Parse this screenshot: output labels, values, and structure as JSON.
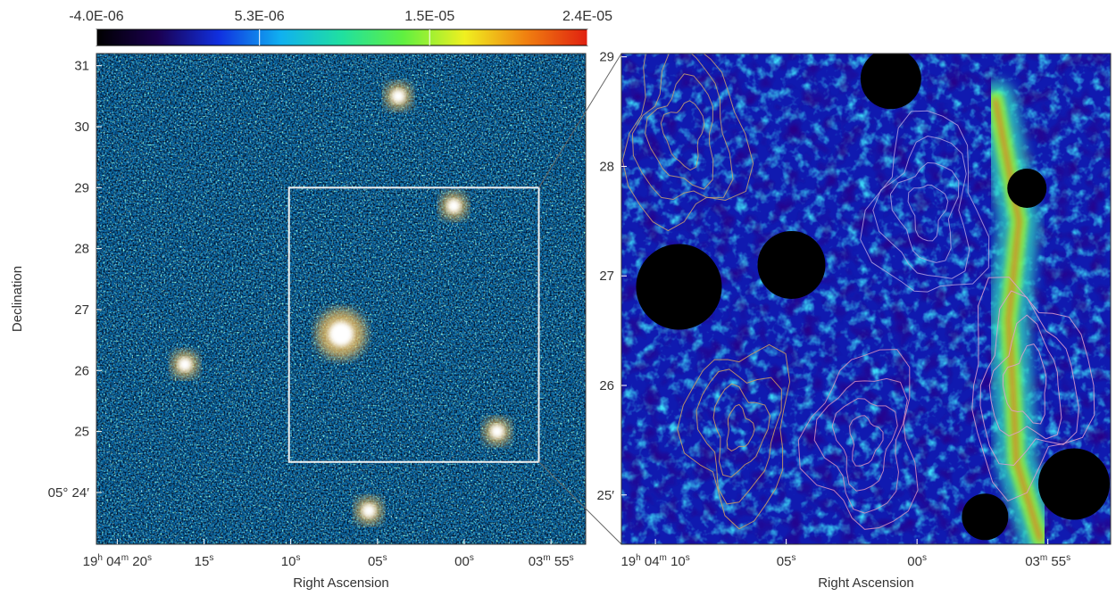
{
  "colorbar": {
    "tick_labels": [
      "-4.0E-06",
      "5.3E-06",
      "1.5E-05",
      "2.4E-05"
    ],
    "min": -4e-06,
    "max": 2.4e-05,
    "colormap": [
      "#000000",
      "#1a0050",
      "#1030e0",
      "#10b0f0",
      "#20e0a0",
      "#60f040",
      "#f0f020",
      "#f08010",
      "#e02010"
    ]
  },
  "chart_data": [
    {
      "type": "heatmap",
      "panel": "left",
      "xlabel": "Right Ascension",
      "ylabel": "Declination",
      "x_ticks": [
        {
          "label": "19h 04m 20s",
          "ra_s": 20
        },
        {
          "label": "15s",
          "ra_s": 15
        },
        {
          "label": "10s",
          "ra_s": 10
        },
        {
          "label": "05s",
          "ra_s": 5
        },
        {
          "label": "00s",
          "ra_s": 0
        },
        {
          "label": "03m 55s",
          "ra_s": -5
        }
      ],
      "y_ticks": [
        {
          "label": "31",
          "dec_arcmin": 31
        },
        {
          "label": "30",
          "dec_arcmin": 30
        },
        {
          "label": "29",
          "dec_arcmin": 29
        },
        {
          "label": "28",
          "dec_arcmin": 28
        },
        {
          "label": "27",
          "dec_arcmin": 27
        },
        {
          "label": "26",
          "dec_arcmin": 26
        },
        {
          "label": "25",
          "dec_arcmin": 25
        },
        {
          "label": "05° 24′",
          "dec_arcmin": 24
        }
      ],
      "zoom_box": {
        "ra_s": [
          10.1,
          -4.3
        ],
        "dec_arcmin": [
          24.5,
          29.0
        ]
      },
      "bright_sources": [
        {
          "ra_s": 7.1,
          "dec_arcmin": 26.6
        },
        {
          "ra_s": 16.1,
          "dec_arcmin": 26.1
        },
        {
          "ra_s": -1.9,
          "dec_arcmin": 25.0
        },
        {
          "ra_s": 5.5,
          "dec_arcmin": 23.7
        },
        {
          "ra_s": 3.8,
          "dec_arcmin": 30.5
        },
        {
          "ra_s": 0.6,
          "dec_arcmin": 28.7
        }
      ],
      "colormap_range": [
        -4e-06,
        2.4e-05
      ]
    },
    {
      "type": "heatmap",
      "panel": "right",
      "xlabel": "Right Ascension",
      "ylabel": "",
      "x_ticks": [
        {
          "label": "19h 04m 10s",
          "ra_s": 10
        },
        {
          "label": "05s",
          "ra_s": 5
        },
        {
          "label": "00s",
          "ra_s": 0
        },
        {
          "label": "03m 55s",
          "ra_s": -5
        }
      ],
      "y_ticks": [
        {
          "label": "29",
          "dec_arcmin": 29
        },
        {
          "label": "28",
          "dec_arcmin": 28
        },
        {
          "label": "27",
          "dec_arcmin": 27
        },
        {
          "label": "26",
          "dec_arcmin": 26
        },
        {
          "label": "25′",
          "dec_arcmin": 25
        }
      ],
      "filament": [
        {
          "ra_s": -4.7,
          "dec_arcmin": 24.6
        },
        {
          "ra_s": -3.8,
          "dec_arcmin": 25.3
        },
        {
          "ra_s": -3.7,
          "dec_arcmin": 25.8
        },
        {
          "ra_s": -3.5,
          "dec_arcmin": 26.6
        },
        {
          "ra_s": -3.9,
          "dec_arcmin": 27.5
        },
        {
          "ra_s": -3.0,
          "dec_arcmin": 28.6
        }
      ],
      "masked_sources": [
        {
          "ra_s": 9.1,
          "dec_arcmin": 26.9
        },
        {
          "ra_s": 4.8,
          "dec_arcmin": 27.1
        },
        {
          "ra_s": 1.0,
          "dec_arcmin": 28.8
        },
        {
          "ra_s": -2.6,
          "dec_arcmin": 24.8
        },
        {
          "ra_s": -4.2,
          "dec_arcmin": 27.8
        },
        {
          "ra_s": -6.0,
          "dec_arcmin": 25.1
        }
      ],
      "contours": true,
      "colormap_range": [
        -4e-06,
        2.4e-05
      ]
    }
  ]
}
